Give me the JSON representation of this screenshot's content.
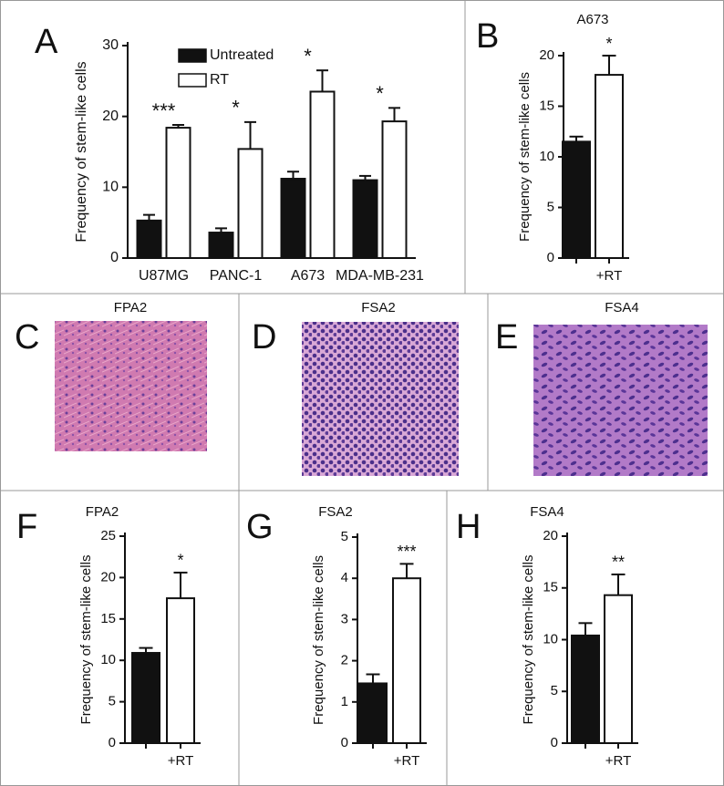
{
  "chart_data": [
    {
      "type": "bar",
      "panel_label": "A",
      "y_label": "Frequency of stem-like cells",
      "categories": [
        "U87MG",
        "PANC-1",
        "A673",
        "MDA-MB-231"
      ],
      "series": [
        {
          "name": "Untreated",
          "color": "#111111",
          "values": [
            5.3,
            3.6,
            11.2,
            11.0
          ],
          "errors": [
            0.8,
            0.6,
            1.0,
            0.6
          ]
        },
        {
          "name": "RT",
          "color": "#ffffff",
          "values": [
            18.4,
            15.4,
            23.5,
            19.3
          ],
          "errors": [
            0.4,
            3.8,
            3.0,
            1.9
          ]
        }
      ],
      "significance": [
        "***",
        "*",
        "*",
        "*"
      ],
      "ylim": [
        0,
        30
      ],
      "yticks": [
        0,
        10,
        20,
        30
      ]
    },
    {
      "type": "bar",
      "panel_label": "B",
      "title": "A673",
      "y_label": "Frequency of stem-like cells",
      "categories": [
        null,
        "+RT"
      ],
      "values": [
        11.5,
        18.1
      ],
      "errors": [
        0.5,
        1.9
      ],
      "colors": [
        "#111111",
        "#ffffff"
      ],
      "significance": "*",
      "ylim": [
        0,
        20
      ],
      "yticks": [
        0,
        5,
        10,
        15,
        20
      ]
    },
    {
      "type": "bar",
      "panel_label": "F",
      "title": "FPA2",
      "y_label": "Frequency of stem-like cells",
      "categories": [
        null,
        "+RT"
      ],
      "values": [
        10.9,
        17.5
      ],
      "errors": [
        0.6,
        3.1
      ],
      "colors": [
        "#111111",
        "#ffffff"
      ],
      "significance": "*",
      "ylim": [
        0,
        25
      ],
      "yticks": [
        0,
        5,
        10,
        15,
        20,
        25
      ]
    },
    {
      "type": "bar",
      "panel_label": "G",
      "title": "FSA2",
      "y_label": "Frequency of stem-like cells",
      "categories": [
        null,
        "+RT"
      ],
      "values": [
        1.45,
        4.0
      ],
      "errors": [
        0.22,
        0.35
      ],
      "colors": [
        "#111111",
        "#ffffff"
      ],
      "significance": "***",
      "ylim": [
        0,
        5
      ],
      "yticks": [
        0,
        1,
        2,
        3,
        4,
        5
      ]
    },
    {
      "type": "bar",
      "panel_label": "H",
      "title": "FSA4",
      "y_label": "Frequency of stem-like cells",
      "categories": [
        null,
        "+RT"
      ],
      "values": [
        10.4,
        14.3
      ],
      "errors": [
        1.2,
        2.0
      ],
      "colors": [
        "#111111",
        "#ffffff"
      ],
      "significance": "**",
      "ylim": [
        0,
        20
      ],
      "yticks": [
        0,
        5,
        10,
        15,
        20
      ]
    }
  ],
  "images": [
    {
      "panel_label": "C",
      "title": "FPA2"
    },
    {
      "panel_label": "D",
      "title": "FSA2"
    },
    {
      "panel_label": "E",
      "title": "FSA4"
    }
  ]
}
